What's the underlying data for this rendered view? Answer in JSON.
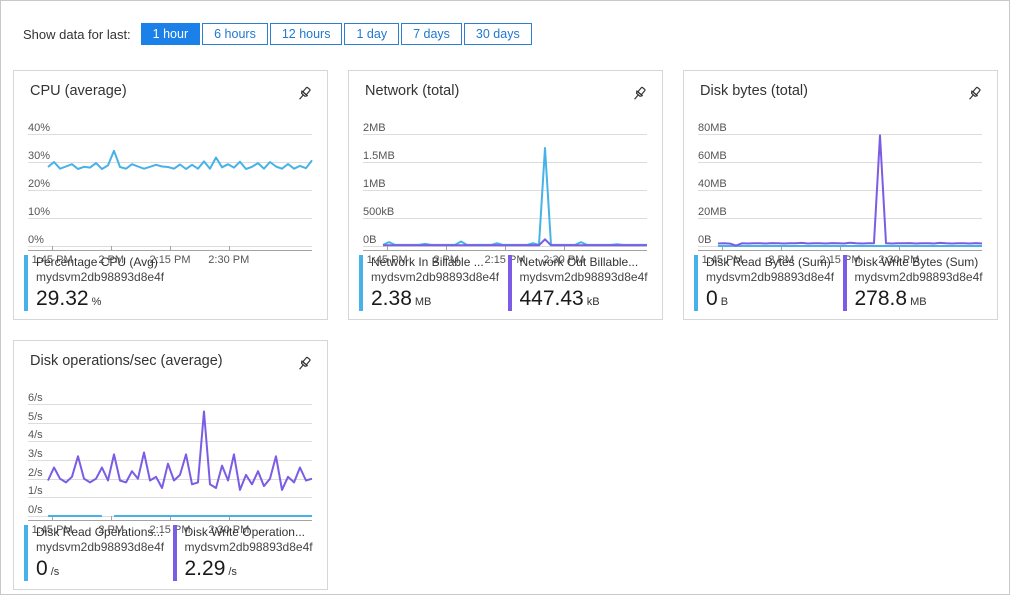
{
  "toolbar": {
    "label": "Show data for last:",
    "accent_color": "#1b80e8",
    "options": [
      {
        "label": "1 hour",
        "selected": true
      },
      {
        "label": "6 hours",
        "selected": false
      },
      {
        "label": "12 hours",
        "selected": false
      },
      {
        "label": "1 day",
        "selected": false
      },
      {
        "label": "7 days",
        "selected": false
      },
      {
        "label": "30 days",
        "selected": false
      }
    ]
  },
  "colors": {
    "chart_blue": "#47b2e8",
    "chart_purple": "#7b5ce5"
  },
  "chart_data": [
    {
      "type": "line",
      "title": "CPU (average)",
      "ylabel": "percent",
      "y_ticks": [
        "40%",
        "30%",
        "20%",
        "10%",
        "0%"
      ],
      "y_tick_values": [
        40,
        30,
        20,
        10,
        0
      ],
      "y_max": 40,
      "x_ticks": [
        "1:45 PM",
        "2 PM",
        "2:15 PM",
        "2:30 PM"
      ],
      "x_tick_pos": [
        8.5,
        29.3,
        50,
        70.7
      ],
      "series": [
        {
          "name": "Percentage CPU (Avg)",
          "resource": "mydsvm2db98893d8e4f",
          "display_value": "29.32",
          "unit": "%",
          "color": "#47b2e8",
          "values": [
            28.2,
            30,
            27.6,
            28.4,
            29.2,
            27.5,
            28.3,
            28,
            29.6,
            27.5,
            28.8,
            34,
            28.2,
            27.6,
            29.2,
            28.4,
            27.6,
            28.3,
            29,
            28.4,
            28.2,
            27.6,
            29.1,
            27.5,
            29,
            27.6,
            30.2,
            27.6,
            31.6,
            28.1,
            29.2,
            28,
            30.1,
            27.5,
            28.3,
            29.6,
            27.6,
            30,
            28.4,
            27.6,
            29.3,
            27.6,
            28.6,
            27.8,
            30.6
          ]
        }
      ]
    },
    {
      "type": "line",
      "title": "Network (total)",
      "ylabel": "bytes",
      "y_ticks": [
        "2MB",
        "1.5MB",
        "1MB",
        "500kB",
        "0B"
      ],
      "y_tick_values": [
        2,
        1.5,
        1,
        0.5,
        0
      ],
      "y_max": 2,
      "x_ticks": [
        "1:45 PM",
        "2 PM",
        "2:15 PM",
        "2:30 PM"
      ],
      "x_tick_pos": [
        8.5,
        29.3,
        50,
        70.7
      ],
      "series": [
        {
          "name": "Network In Billable ...",
          "resource": "mydsvm2db98893d8e4f",
          "display_value": "2.38",
          "unit": "MB",
          "color": "#47b2e8",
          "values": [
            0.02,
            0.07,
            0.02,
            0.02,
            0.02,
            0.02,
            0.02,
            0.04,
            0.02,
            0.02,
            0.02,
            0.02,
            0.02,
            0.08,
            0.02,
            0.02,
            0.02,
            0.02,
            0.02,
            0.05,
            0.02,
            0.02,
            0.02,
            0.02,
            0.02,
            0.05,
            0.02,
            1.75,
            0.02,
            0.02,
            0.02,
            0.02,
            0.02,
            0.07,
            0.02,
            0.02,
            0.02,
            0.02,
            0.02,
            0.03,
            0.02,
            0.02,
            0.02,
            0.02,
            0.02
          ]
        },
        {
          "name": "Network Out Billable...",
          "resource": "mydsvm2db98893d8e4f",
          "display_value": "447.43",
          "unit": "kB",
          "color": "#7b5ce5",
          "values": [
            0.012,
            0.012,
            0.012,
            0.012,
            0.012,
            0.012,
            0.012,
            0.012,
            0.012,
            0.012,
            0.012,
            0.012,
            0.012,
            0.012,
            0.012,
            0.012,
            0.012,
            0.012,
            0.012,
            0.012,
            0.012,
            0.012,
            0.012,
            0.012,
            0.012,
            0.012,
            0.012,
            0.12,
            0.012,
            0.012,
            0.012,
            0.012,
            0.012,
            0.012,
            0.012,
            0.012,
            0.012,
            0.012,
            0.012,
            0.012,
            0.012,
            0.012,
            0.012,
            0.012,
            0.012
          ]
        }
      ]
    },
    {
      "type": "line",
      "title": "Disk bytes (total)",
      "ylabel": "bytes",
      "y_ticks": [
        "80MB",
        "60MB",
        "40MB",
        "20MB",
        "0B"
      ],
      "y_tick_values": [
        80,
        60,
        40,
        20,
        0
      ],
      "y_max": 80,
      "x_ticks": [
        "1:45 PM",
        "2 PM",
        "2:15 PM",
        "2:30 PM"
      ],
      "x_tick_pos": [
        8.5,
        29.3,
        50,
        70.7
      ],
      "series": [
        {
          "name": "Disk Read Bytes (Sum)",
          "resource": "mydsvm2db98893d8e4f",
          "display_value": "0",
          "unit": "B",
          "color": "#47b2e8",
          "values": [
            0,
            0,
            0,
            0,
            0,
            0,
            0,
            0,
            0,
            0,
            0,
            0,
            0,
            0,
            0,
            0,
            0,
            0,
            0,
            0,
            0,
            0,
            0,
            0,
            0,
            0,
            0,
            0,
            0,
            0,
            0,
            0,
            0,
            0,
            0,
            0,
            0,
            0,
            0,
            0,
            0,
            0,
            0,
            0,
            0
          ]
        },
        {
          "name": "Disk Write Bytes (Sum)",
          "resource": "mydsvm2db98893d8e4f",
          "display_value": "278.8",
          "unit": "MB",
          "color": "#7b5ce5",
          "values": [
            1.8,
            1.9,
            1.7,
            0.3,
            1.9,
            1.8,
            2.0,
            1.9,
            1.8,
            2.1,
            1.9,
            1.8,
            2.0,
            1.9,
            2.2,
            1.8,
            1.9,
            2.0,
            1.8,
            2.1,
            1.9,
            1.8,
            2.3,
            1.9,
            1.8,
            2.0,
            1.9,
            79,
            1.9,
            1.8,
            2.0,
            1.9,
            2.1,
            1.8,
            1.9,
            2.0,
            1.8,
            2.2,
            1.9,
            1.8,
            2.0,
            1.9,
            1.8,
            2.1,
            1.8
          ]
        }
      ]
    },
    {
      "type": "line",
      "title": "Disk operations/sec (average)",
      "ylabel": "operations per second",
      "y_ticks": [
        "6/s",
        "5/s",
        "4/s",
        "3/s",
        "2/s",
        "1/s",
        "0/s"
      ],
      "y_tick_values": [
        6,
        5,
        4,
        3,
        2,
        1,
        0
      ],
      "y_max": 6,
      "x_ticks": [
        "1:45 PM",
        "2 PM",
        "2:15 PM",
        "2:30 PM"
      ],
      "x_tick_pos": [
        8.5,
        29.3,
        50,
        70.7
      ],
      "series": [
        {
          "name": "Disk Read Operations...",
          "resource": "mydsvm2db98893d8e4f",
          "display_value": "0",
          "unit": "/s",
          "color": "#47b2e8",
          "values": [
            0,
            0,
            0,
            0,
            0,
            0,
            0,
            0,
            0,
            0,
            null,
            0,
            0,
            0,
            0,
            0,
            0,
            0,
            0,
            0,
            0,
            0,
            0,
            0,
            0,
            0,
            0,
            0,
            0,
            0,
            0,
            0,
            0,
            0,
            0,
            0,
            0,
            0,
            0,
            0,
            0,
            0,
            0,
            0,
            0
          ]
        },
        {
          "name": "Disk Write Operation...",
          "resource": "mydsvm2db98893d8e4f",
          "display_value": "2.29",
          "unit": "/s",
          "color": "#7b5ce5",
          "values": [
            1.9,
            2.6,
            2.0,
            1.8,
            2.1,
            3.2,
            2.0,
            1.8,
            2.0,
            2.6,
            1.9,
            3.3,
            1.9,
            1.8,
            2.4,
            2.0,
            3.4,
            1.9,
            2.1,
            1.5,
            2.8,
            1.9,
            2.2,
            3.3,
            1.7,
            1.8,
            5.6,
            1.7,
            1.5,
            2.7,
            1.9,
            3.3,
            1.4,
            2.2,
            1.7,
            2.4,
            1.6,
            2.0,
            3.2,
            1.4,
            2.1,
            1.8,
            2.6,
            1.9,
            2.0
          ]
        }
      ]
    }
  ]
}
